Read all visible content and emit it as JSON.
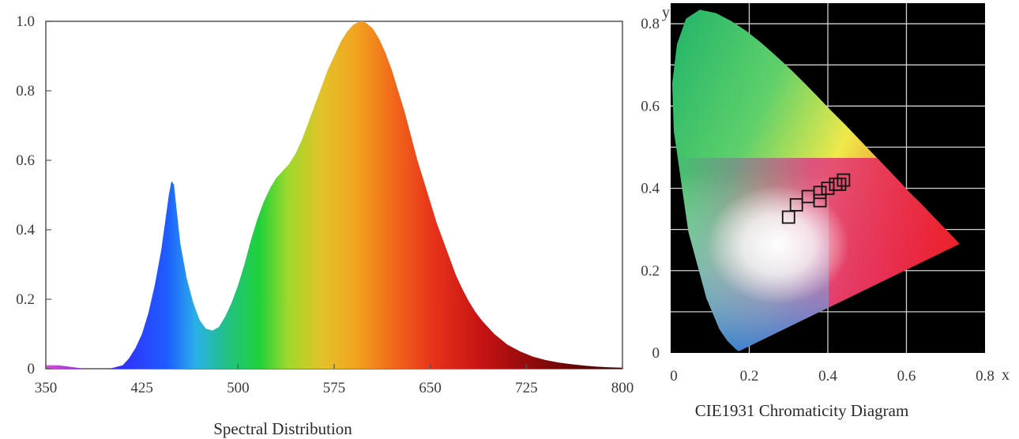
{
  "spectral": {
    "chart_data": {
      "type": "area",
      "title": "Spectral Distribution",
      "xlabel": "",
      "ylabel": "",
      "xlim": [
        350,
        800
      ],
      "ylim": [
        0,
        1.0
      ],
      "grid": false,
      "x_ticks": [
        "350",
        "425",
        "500",
        "575",
        "650",
        "725",
        "800"
      ],
      "y_ticks": [
        "0",
        "0.2",
        "0.4",
        "0.6",
        "0.8",
        "1.0"
      ],
      "series": [
        {
          "x": [
            350,
            360,
            370,
            380,
            390,
            400,
            405,
            410,
            415,
            420,
            425,
            430,
            435,
            440,
            443,
            446,
            448,
            450,
            452,
            455,
            460,
            465,
            470,
            475,
            480,
            485,
            490,
            495,
            500,
            505,
            510,
            515,
            520,
            525,
            530,
            535,
            540,
            545,
            550,
            555,
            560,
            565,
            570,
            575,
            580,
            585,
            590,
            595,
            598,
            600,
            605,
            610,
            615,
            620,
            625,
            630,
            635,
            640,
            645,
            650,
            655,
            660,
            665,
            670,
            675,
            680,
            685,
            690,
            695,
            700,
            710,
            720,
            730,
            740,
            750,
            760,
            770,
            780,
            790,
            800
          ],
          "y": [
            0.01,
            0.01,
            0.005,
            0.0,
            0.0,
            0.0,
            0.005,
            0.01,
            0.03,
            0.06,
            0.1,
            0.16,
            0.24,
            0.34,
            0.42,
            0.5,
            0.54,
            0.53,
            0.46,
            0.36,
            0.26,
            0.19,
            0.14,
            0.115,
            0.11,
            0.12,
            0.15,
            0.19,
            0.24,
            0.3,
            0.37,
            0.43,
            0.48,
            0.52,
            0.55,
            0.57,
            0.59,
            0.62,
            0.66,
            0.71,
            0.76,
            0.81,
            0.86,
            0.9,
            0.94,
            0.97,
            0.99,
            1.0,
            1.0,
            0.995,
            0.98,
            0.95,
            0.91,
            0.86,
            0.8,
            0.74,
            0.67,
            0.6,
            0.54,
            0.48,
            0.42,
            0.37,
            0.32,
            0.27,
            0.23,
            0.195,
            0.165,
            0.14,
            0.12,
            0.1,
            0.07,
            0.05,
            0.035,
            0.025,
            0.018,
            0.013,
            0.009,
            0.006,
            0.004,
            0.003
          ]
        }
      ]
    }
  },
  "cie": {
    "chart_data": {
      "type": "scatter",
      "title": "CIE1931 Chromaticity Diagram",
      "xlabel": "x",
      "ylabel": "y",
      "xlim": [
        0,
        0.8
      ],
      "ylim": [
        0,
        0.85
      ],
      "grid": true,
      "x_ticks": [
        "0",
        "0.2",
        "0.4",
        "0.6",
        "0.8"
      ],
      "y_ticks": [
        "0",
        "0.2",
        "0.4",
        "0.6",
        "0.8"
      ],
      "colors": {
        "background": "#000000",
        "grid": "#d0d0d0",
        "marker": "#111111"
      },
      "series": [
        {
          "marker": "square",
          "x": [
            0.3,
            0.32,
            0.35,
            0.38,
            0.4,
            0.42,
            0.44,
            0.38,
            0.43
          ],
          "y": [
            0.33,
            0.36,
            0.38,
            0.39,
            0.4,
            0.41,
            0.42,
            0.37,
            0.41
          ]
        }
      ]
    }
  }
}
